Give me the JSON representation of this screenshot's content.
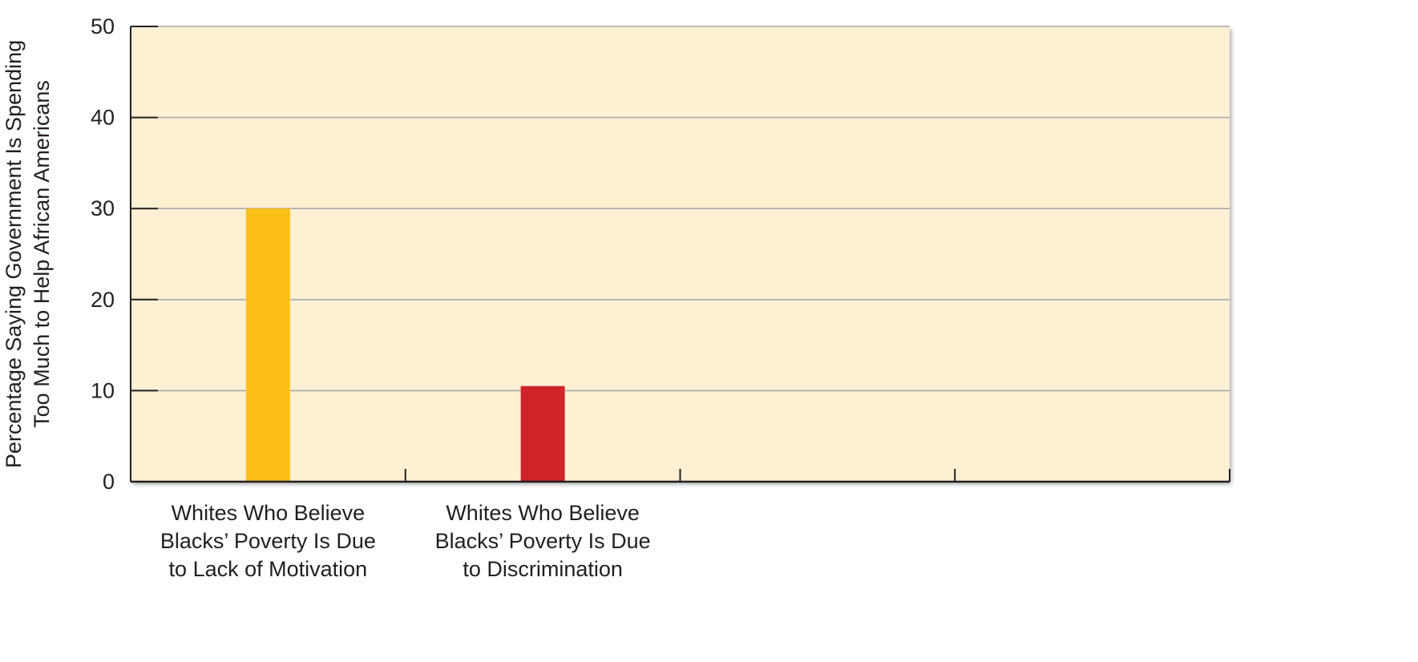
{
  "chart_data": {
    "type": "bar",
    "title": "",
    "xlabel": "",
    "ylabel_lines": [
      "Percentage Saying Government Is Spending",
      "Too Much to Help African Americans"
    ],
    "categories": [
      [
        "Whites Who Believe",
        "Blacks’ Poverty Is Due",
        "to Lack of Motivation"
      ],
      [
        "Whites Who Believe",
        "Blacks’ Poverty Is Due",
        "to Discrimination"
      ],
      [],
      []
    ],
    "values": [
      30,
      10.5,
      null,
      null
    ],
    "bar_colors": [
      "#fbbf17",
      "#d1232a"
    ],
    "ylim": [
      0,
      50
    ],
    "yticks": [
      0,
      10,
      20,
      30,
      40,
      50
    ],
    "grid": true,
    "legend": "none",
    "colors": {
      "plot_background": "#fdf0d3",
      "gridline": "#a7a9ac",
      "axis": "#231f20",
      "text": "#231f20"
    }
  }
}
